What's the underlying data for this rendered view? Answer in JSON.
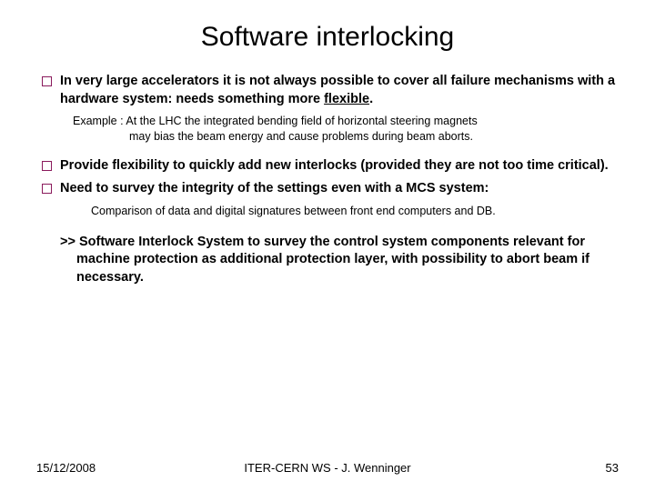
{
  "title": "Software interlocking",
  "bullets": [
    {
      "text_html": "In very large accelerators it is not always possible to cover all failure mechanisms with a hardware system: needs something more <span class=\"underline\">flexible</span>."
    },
    {
      "text_html": "Provide flexibility to quickly add new interlocks (provided they are not too time critical)."
    },
    {
      "text_html": "Need to survey the integrity of the settings even with a MCS system:"
    }
  ],
  "example_line1": "Example : At the LHC the integrated bending field of horizontal steering magnets",
  "example_line2": "may bias the beam energy and cause problems during beam aborts.",
  "sub_text": "Comparison of data and digital signatures between front end computers and DB.",
  "lead_text": ">> Software Interlock System to survey the control system components relevant for machine protection as additional protection layer, with possibility to abort beam if necessary.",
  "footer": {
    "date": "15/12/2008",
    "center": "ITER-CERN WS - J. Wenninger",
    "page": "53"
  },
  "colors": {
    "bullet_border": "#8a1a5c",
    "text": "#000000",
    "background": "#ffffff"
  }
}
